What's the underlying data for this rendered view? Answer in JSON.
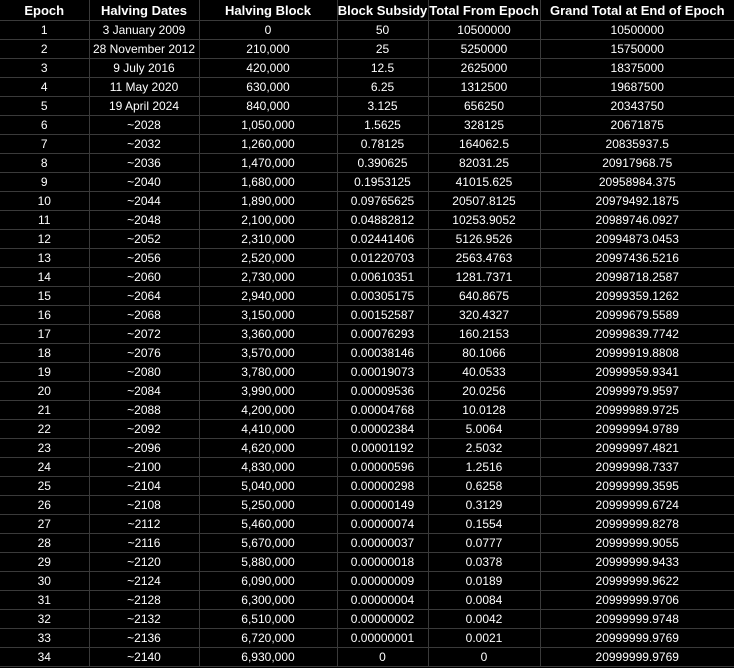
{
  "table": {
    "headers": [
      "Epoch",
      "Halving Dates",
      "Halving Block",
      "Block Subsidy",
      "Total From Epoch",
      "Grand Total at End of Epoch"
    ],
    "rows": [
      [
        "1",
        "3 January 2009",
        "0",
        "50",
        "10500000",
        "10500000"
      ],
      [
        "2",
        "28 November 2012",
        "210,000",
        "25",
        "5250000",
        "15750000"
      ],
      [
        "3",
        "9 July 2016",
        "420,000",
        "12.5",
        "2625000",
        "18375000"
      ],
      [
        "4",
        "11 May 2020",
        "630,000",
        "6.25",
        "1312500",
        "19687500"
      ],
      [
        "5",
        "19 April 2024",
        "840,000",
        "3.125",
        "656250",
        "20343750"
      ],
      [
        "6",
        "~2028",
        "1,050,000",
        "1.5625",
        "328125",
        "20671875"
      ],
      [
        "7",
        "~2032",
        "1,260,000",
        "0.78125",
        "164062.5",
        "20835937.5"
      ],
      [
        "8",
        "~2036",
        "1,470,000",
        "0.390625",
        "82031.25",
        "20917968.75"
      ],
      [
        "9",
        "~2040",
        "1,680,000",
        "0.1953125",
        "41015.625",
        "20958984.375"
      ],
      [
        "10",
        "~2044",
        "1,890,000",
        "0.09765625",
        "20507.8125",
        "20979492.1875"
      ],
      [
        "11",
        "~2048",
        "2,100,000",
        "0.04882812",
        "10253.9052",
        "20989746.0927"
      ],
      [
        "12",
        "~2052",
        "2,310,000",
        "0.02441406",
        "5126.9526",
        "20994873.0453"
      ],
      [
        "13",
        "~2056",
        "2,520,000",
        "0.01220703",
        "2563.4763",
        "20997436.5216"
      ],
      [
        "14",
        "~2060",
        "2,730,000",
        "0.00610351",
        "1281.7371",
        "20998718.2587"
      ],
      [
        "15",
        "~2064",
        "2,940,000",
        "0.00305175",
        "640.8675",
        "20999359.1262"
      ],
      [
        "16",
        "~2068",
        "3,150,000",
        "0.00152587",
        "320.4327",
        "20999679.5589"
      ],
      [
        "17",
        "~2072",
        "3,360,000",
        "0.00076293",
        "160.2153",
        "20999839.7742"
      ],
      [
        "18",
        "~2076",
        "3,570,000",
        "0.00038146",
        "80.1066",
        "20999919.8808"
      ],
      [
        "19",
        "~2080",
        "3,780,000",
        "0.00019073",
        "40.0533",
        "20999959.9341"
      ],
      [
        "20",
        "~2084",
        "3,990,000",
        "0.00009536",
        "20.0256",
        "20999979.9597"
      ],
      [
        "21",
        "~2088",
        "4,200,000",
        "0.00004768",
        "10.0128",
        "20999989.9725"
      ],
      [
        "22",
        "~2092",
        "4,410,000",
        "0.00002384",
        "5.0064",
        "20999994.9789"
      ],
      [
        "23",
        "~2096",
        "4,620,000",
        "0.00001192",
        "2.5032",
        "20999997.4821"
      ],
      [
        "24",
        "~2100",
        "4,830,000",
        "0.00000596",
        "1.2516",
        "20999998.7337"
      ],
      [
        "25",
        "~2104",
        "5,040,000",
        "0.00000298",
        "0.6258",
        "20999999.3595"
      ],
      [
        "26",
        "~2108",
        "5,250,000",
        "0.00000149",
        "0.3129",
        "20999999.6724"
      ],
      [
        "27",
        "~2112",
        "5,460,000",
        "0.00000074",
        "0.1554",
        "20999999.8278"
      ],
      [
        "28",
        "~2116",
        "5,670,000",
        "0.00000037",
        "0.0777",
        "20999999.9055"
      ],
      [
        "29",
        "~2120",
        "5,880,000",
        "0.00000018",
        "0.0378",
        "20999999.9433"
      ],
      [
        "30",
        "~2124",
        "6,090,000",
        "0.00000009",
        "0.0189",
        "20999999.9622"
      ],
      [
        "31",
        "~2128",
        "6,300,000",
        "0.00000004",
        "0.0084",
        "20999999.9706"
      ],
      [
        "32",
        "~2132",
        "6,510,000",
        "0.00000002",
        "0.0042",
        "20999999.9748"
      ],
      [
        "33",
        "~2136",
        "6,720,000",
        "0.00000001",
        "0.0021",
        "20999999.9769"
      ],
      [
        "34",
        "~2140",
        "6,930,000",
        "0",
        "0",
        "20999999.9769"
      ]
    ]
  }
}
